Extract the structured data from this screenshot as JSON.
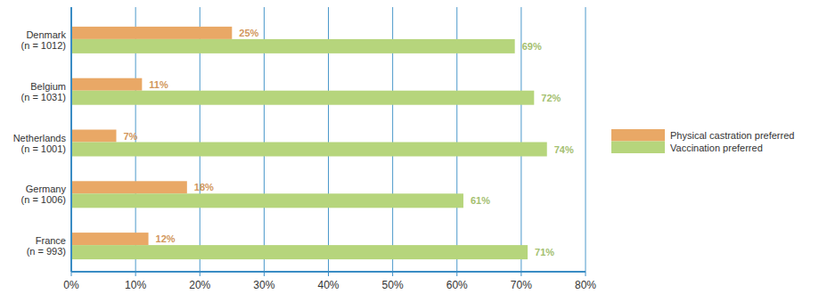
{
  "chart_data": {
    "type": "bar",
    "orientation": "horizontal",
    "categories": [
      "Denmark\n(n = 1012)",
      "Belgium\n(n = 1031)",
      "Netherlands\n(n = 1001)",
      "Germany\n(n = 1006)",
      "France\n(n = 993)"
    ],
    "series": [
      {
        "name": "Physical castration preferred",
        "color": "#e9a866",
        "values": [
          25,
          11,
          7,
          18,
          12
        ],
        "value_labels": [
          "25%",
          "11%",
          "7%",
          "18%",
          "12%"
        ]
      },
      {
        "name": "Vaccination preferred",
        "color": "#b6d57c",
        "values": [
          69,
          72,
          74,
          61,
          71
        ],
        "value_labels": [
          "69%",
          "72%",
          "74%",
          "61%",
          "71%"
        ]
      }
    ],
    "xlim": [
      0,
      80
    ],
    "xticks": [
      {
        "value": 0,
        "label": "0%"
      },
      {
        "value": 10,
        "label": "10%"
      },
      {
        "value": 20,
        "label": "20%"
      },
      {
        "value": 30,
        "label": "30%"
      },
      {
        "value": 40,
        "label": "40%"
      },
      {
        "value": 50,
        "label": "50%"
      },
      {
        "value": 60,
        "label": "60%"
      },
      {
        "value": 70,
        "label": "70%"
      },
      {
        "value": 80,
        "label": "80%"
      }
    ],
    "grid": true,
    "data_labels": true,
    "legend": "right"
  }
}
